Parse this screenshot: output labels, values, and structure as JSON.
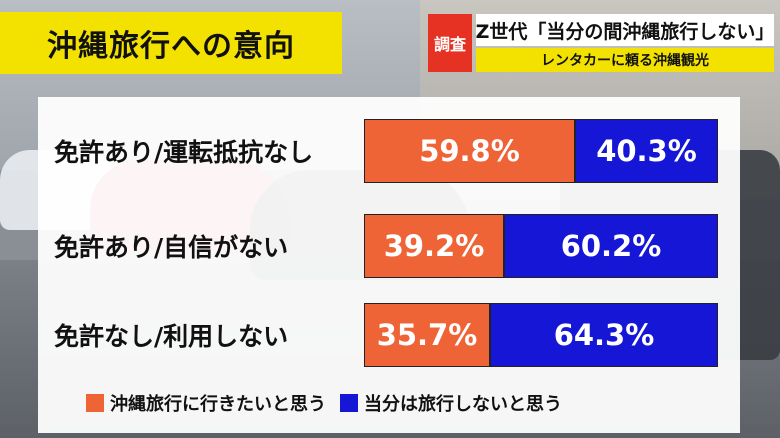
{
  "header": {
    "title": "沖縄旅行への意向",
    "badge": "調査",
    "headline": "Z世代「当分の間沖縄旅行しない」",
    "subline": "レンタカーに頼る沖縄観光"
  },
  "chart_data": {
    "type": "bar",
    "stacked": true,
    "orientation": "horizontal",
    "categories": [
      "免許あり/運転抵抗なし",
      "免許あり/自信がない",
      "免許なし/利用しない"
    ],
    "series": [
      {
        "name": "沖縄旅行に行きたいと思う",
        "color": "#ef6436",
        "values": [
          59.8,
          39.2,
          35.7
        ]
      },
      {
        "name": "当分は旅行しないと思う",
        "color": "#1616d6",
        "values": [
          40.3,
          60.2,
          64.3
        ]
      }
    ],
    "value_suffix": "%",
    "legend_position": "bottom"
  }
}
